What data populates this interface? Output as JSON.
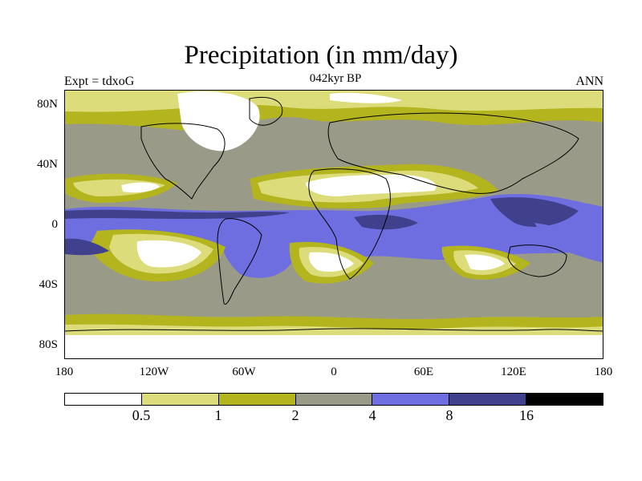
{
  "title": "Precipitation (in mm/day)",
  "subtitle": "042kyr BP",
  "experiment": "Expt = tdxoG",
  "season": "ANN",
  "map": {
    "projection": "cylindrical equidistant",
    "lat_ticks": [
      "80N",
      "40N",
      "0",
      "40S",
      "80S"
    ],
    "lon_ticks": [
      "180",
      "120W",
      "60W",
      "0",
      "60E",
      "120E",
      "180"
    ]
  },
  "legend": {
    "levels": [
      "0.5",
      "1",
      "2",
      "4",
      "8",
      "16"
    ],
    "colors": [
      "#ffffff",
      "#dcdc7a",
      "#b4b41e",
      "#9a9a88",
      "#6e6ee0",
      "#40408c",
      "#000000"
    ]
  }
}
